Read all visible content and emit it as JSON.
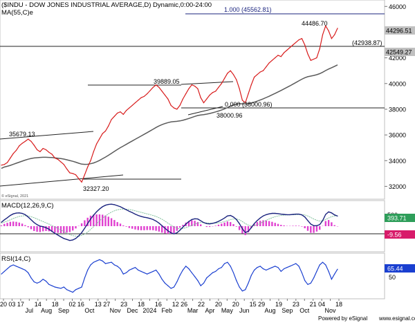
{
  "header": {
    "title": "($INDU - DOW JONES INDUSTRIAL AVERAGE,D) Dynamic,0:00-24:00",
    "ma_label": "MA(55,C)e"
  },
  "footer": {
    "powered": "Powered by eSignal",
    "url": "www.esignal.com",
    "copyright": "© eSignal, 2021"
  },
  "colors": {
    "price": "#d81b1b",
    "ma": "#5a5a5a",
    "macd": "#1a237e",
    "signal": "#7fbf9a",
    "hist": "#e040d0",
    "rsi": "#1a3fd0",
    "last_price_bg": "#c0c0c0",
    "macd_tag_bg": "#2e9e5a",
    "macd_hist_tag_bg": "#d81b6a",
    "rsi_tag_bg": "#1a3fd0"
  },
  "chart_data": [
    {
      "panel": "price",
      "type": "line",
      "title": "($INDU - DOW JONES INDUSTRIAL AVERAGE,D) Dynamic,0:00-24:00",
      "ylim": [
        31000,
        46500
      ],
      "y_ticks": [
        32000,
        34000,
        36000,
        38000,
        40000,
        42000,
        44000,
        46000
      ],
      "x_ticks": [
        "20",
        "03",
        "17",
        "Jul",
        "14",
        "Aug",
        "18",
        "Sep",
        "02",
        "16",
        "Oct",
        "13",
        "27",
        "Nov",
        "23",
        "Dec",
        "18",
        "2024",
        "16",
        "Feb",
        "12",
        "26",
        "Mar",
        "22",
        "Apr",
        "20",
        "May",
        "20",
        "Jun",
        "15",
        "29",
        "Aug",
        "19",
        "Sep",
        "23",
        "Oct",
        "21",
        "04",
        "Nov",
        "18"
      ],
      "series": [
        {
          "name": "$INDU",
          "values": [
            33650,
            33700,
            33850,
            34200,
            34550,
            34800,
            35150,
            35350,
            35500,
            35679,
            35500,
            35200,
            34850,
            34700,
            34950,
            34850,
            34650,
            34500,
            34200,
            34100,
            33900,
            33700,
            33350,
            33050,
            33000,
            32900,
            32600,
            32327,
            32900,
            33500,
            34000,
            34700,
            35300,
            35700,
            36100,
            36300,
            36700,
            37200,
            37450,
            37700,
            37800,
            37600,
            37900,
            38100,
            38300,
            38500,
            38700,
            38900,
            39000,
            39200,
            39450,
            39700,
            39889,
            39700,
            39400,
            39100,
            38800,
            38300,
            38100,
            38000,
            38300,
            38800,
            39200,
            39600,
            39900,
            39800,
            39600,
            38900,
            38500,
            38800,
            39100,
            39300,
            39400,
            39700,
            40000,
            40400,
            40800,
            41000,
            40700,
            40300,
            39600,
            38700,
            38500,
            39200,
            39900,
            40500,
            40700,
            40900,
            41000,
            41300,
            41600,
            41800,
            42000,
            42200,
            42100,
            42400,
            42600,
            42800,
            43000,
            43200,
            43400,
            43500,
            43000,
            42300,
            41800,
            41900,
            42000,
            42700,
            43800,
            44486,
            44100,
            43500,
            43800,
            44296.51
          ]
        },
        {
          "name": "MA(55,C)e",
          "values": [
            33400,
            33500,
            33560,
            33630,
            33710,
            33800,
            33880,
            33960,
            34040,
            34110,
            34170,
            34210,
            34230,
            34250,
            34260,
            34260,
            34250,
            34240,
            34220,
            34190,
            34160,
            34120,
            34070,
            34010,
            33950,
            33880,
            33800,
            33730,
            33710,
            33720,
            33760,
            33820,
            33910,
            34020,
            34150,
            34280,
            34420,
            34570,
            34720,
            34870,
            35010,
            35140,
            35270,
            35400,
            35530,
            35660,
            35790,
            35920,
            36050,
            36180,
            36310,
            36440,
            36580,
            36700,
            36800,
            36890,
            36960,
            37010,
            37040,
            37060,
            37090,
            37140,
            37210,
            37280,
            37360,
            37440,
            37510,
            37550,
            37580,
            37620,
            37670,
            37730,
            37790,
            37860,
            37940,
            38030,
            38130,
            38240,
            38330,
            38400,
            38430,
            38420,
            38410,
            38430,
            38480,
            38550,
            38630,
            38720,
            38810,
            38910,
            39010,
            39120,
            39230,
            39350,
            39460,
            39580,
            39700,
            39820,
            39950,
            40080,
            40210,
            40340,
            40450,
            40530,
            40580,
            40630,
            40690,
            40770,
            40880,
            41010,
            41130,
            41230,
            41340,
            41450
          ]
        }
      ],
      "annotations": [
        "35679.13",
        "32327.20",
        "39889.05",
        "38000.96",
        "0.000 (38000.96)",
        "1.000 (45562.81)",
        "44486.70",
        "(42938.87)"
      ],
      "price_tags": [
        "44296.51",
        "42549.27"
      ]
    },
    {
      "panel": "macd",
      "type": "line",
      "title": "MACD(12,26,9,C)",
      "ylim": [
        -1000,
        1000
      ],
      "y_ticks": [
        500
      ],
      "series": [
        {
          "name": "MACD",
          "values": [
            150,
            250,
            330,
            420,
            480,
            510,
            520,
            500,
            450,
            360,
            250,
            140,
            60,
            0,
            -20,
            -60,
            -120,
            -200,
            -280,
            -350,
            -420,
            -480,
            -520,
            -560,
            -540,
            -480,
            -380,
            -250,
            -80,
            100,
            280,
            430,
            560,
            670,
            760,
            820,
            850,
            860,
            840,
            800,
            760,
            700,
            640,
            580,
            530,
            470,
            420,
            380,
            350,
            330,
            300,
            260,
            200,
            120,
            20,
            -80,
            -180,
            -260,
            -300,
            -260,
            -160,
            -40,
            80,
            180,
            260,
            290,
            280,
            210,
            140,
            100,
            90,
            110,
            140,
            190,
            250,
            320,
            400,
            420,
            360,
            260,
            100,
            -100,
            -250,
            -200,
            -60,
            100,
            220,
            320,
            400,
            450,
            480,
            500,
            500,
            490,
            470,
            460,
            450,
            450,
            460,
            470,
            470,
            440,
            360,
            220,
            80,
            20,
            20,
            60,
            220,
            460,
            560,
            520,
            440,
            393.71
          ]
        },
        {
          "name": "Signal",
          "values": [
            120,
            160,
            200,
            250,
            300,
            340,
            380,
            400,
            410,
            400,
            370,
            330,
            280,
            230,
            180,
            130,
            80,
            20,
            -30,
            -90,
            -150,
            -210,
            -270,
            -330,
            -370,
            -390,
            -390,
            -360,
            -310,
            -230,
            -130,
            -20,
            100,
            210,
            310,
            400,
            480,
            550,
            600,
            640,
            660,
            670,
            660,
            650,
            630,
            600,
            570,
            540,
            510,
            480,
            450,
            420,
            380,
            330,
            270,
            200,
            120,
            40,
            -30,
            -80,
            -100,
            -90,
            -60,
            -20,
            30,
            80,
            120,
            140,
            140,
            130,
            120,
            120,
            120,
            130,
            150,
            180,
            220,
            260,
            280,
            280,
            250,
            180,
            100,
            40,
            10,
            20,
            60,
            110,
            170,
            230,
            280,
            330,
            370,
            400,
            420,
            430,
            440,
            440,
            445,
            450,
            455,
            455,
            440,
            400,
            340,
            280,
            230,
            200,
            210,
            260,
            320,
            370,
            400,
            403.27
          ]
        },
        {
          "name": "Histogram",
          "values": [
            30,
            90,
            130,
            170,
            180,
            170,
            140,
            100,
            40,
            -40,
            -120,
            -190,
            -220,
            -230,
            -200,
            -190,
            -200,
            -220,
            -250,
            -260,
            -270,
            -270,
            -250,
            -230,
            -170,
            -90,
            10,
            110,
            230,
            330,
            410,
            450,
            460,
            460,
            450,
            420,
            370,
            310,
            240,
            160,
            100,
            30,
            -20,
            -70,
            -100,
            -130,
            -150,
            -160,
            -160,
            -150,
            -150,
            -160,
            -180,
            -210,
            -250,
            -280,
            -300,
            -300,
            -270,
            -180,
            -60,
            50,
            140,
            200,
            230,
            210,
            160,
            70,
            0,
            -30,
            -30,
            -10,
            20,
            60,
            100,
            140,
            180,
            160,
            80,
            -20,
            -150,
            -280,
            -350,
            -240,
            -70,
            80,
            160,
            210,
            230,
            220,
            200,
            170,
            130,
            90,
            50,
            30,
            10,
            10,
            15,
            20,
            15,
            -15,
            -80,
            -180,
            -260,
            -260,
            -210,
            -140,
            10,
            200,
            240,
            150,
            40,
            -9.56
          ]
        }
      ],
      "price_tags": [
        "393.71",
        "-9.56"
      ]
    },
    {
      "panel": "rsi",
      "type": "line",
      "title": "RSI(14,C)",
      "ylim": [
        20,
        90
      ],
      "y_ticks": [
        50
      ],
      "series": [
        {
          "name": "RSI",
          "values": [
            58,
            62,
            66,
            70,
            72,
            70,
            68,
            66,
            64,
            60,
            52,
            46,
            44,
            46,
            50,
            47,
            42,
            40,
            38,
            37,
            36,
            38,
            34,
            32,
            30,
            34,
            36,
            38,
            52,
            64,
            72,
            76,
            78,
            80,
            78,
            74,
            75,
            76,
            72,
            70,
            66,
            58,
            60,
            64,
            66,
            68,
            64,
            62,
            60,
            58,
            60,
            62,
            64,
            58,
            50,
            44,
            40,
            36,
            38,
            46,
            56,
            64,
            70,
            66,
            60,
            54,
            48,
            40,
            44,
            52,
            56,
            60,
            62,
            66,
            68,
            74,
            76,
            70,
            60,
            48,
            38,
            32,
            34,
            44,
            56,
            64,
            68,
            70,
            66,
            64,
            66,
            68,
            70,
            68,
            62,
            66,
            68,
            70,
            72,
            74,
            70,
            60,
            48,
            42,
            44,
            52,
            62,
            72,
            76,
            72,
            62,
            50,
            58,
            65.44
          ]
        }
      ],
      "price_tags": [
        "65.44"
      ]
    }
  ]
}
